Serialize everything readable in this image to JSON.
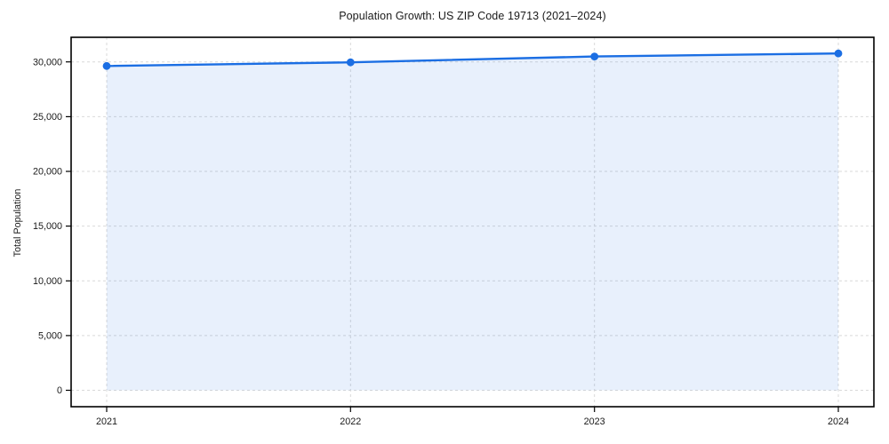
{
  "chart_data": {
    "type": "area",
    "title": "Population Growth: US ZIP Code 19713 (2021–2024)",
    "xlabel": "",
    "ylabel": "Total Population",
    "x": [
      2021,
      2022,
      2023,
      2024
    ],
    "xtick_labels": [
      "2021",
      "2022",
      "2023",
      "2024"
    ],
    "series": [
      {
        "name": "Total Population",
        "values": [
          29630,
          29960,
          30500,
          30770
        ]
      }
    ],
    "baseline": 0,
    "xlim": [
      2020.854,
      2024.146
    ],
    "ylim": [
      -1500,
      32250
    ],
    "yticks": [
      0,
      5000,
      10000,
      15000,
      20000,
      25000,
      30000
    ],
    "ytick_labels": [
      "0",
      "5,000",
      "10,000",
      "15,000",
      "20,000",
      "25,000",
      "30,000"
    ],
    "grid": true,
    "legend": "none",
    "colors": {
      "line": "#1b6ee3",
      "fill": "rgba(27,110,227,0.10)",
      "grid": "#d9d9d9",
      "spine": "#000000",
      "tick_text": "#1a1a1a",
      "background": "#ffffff"
    }
  }
}
